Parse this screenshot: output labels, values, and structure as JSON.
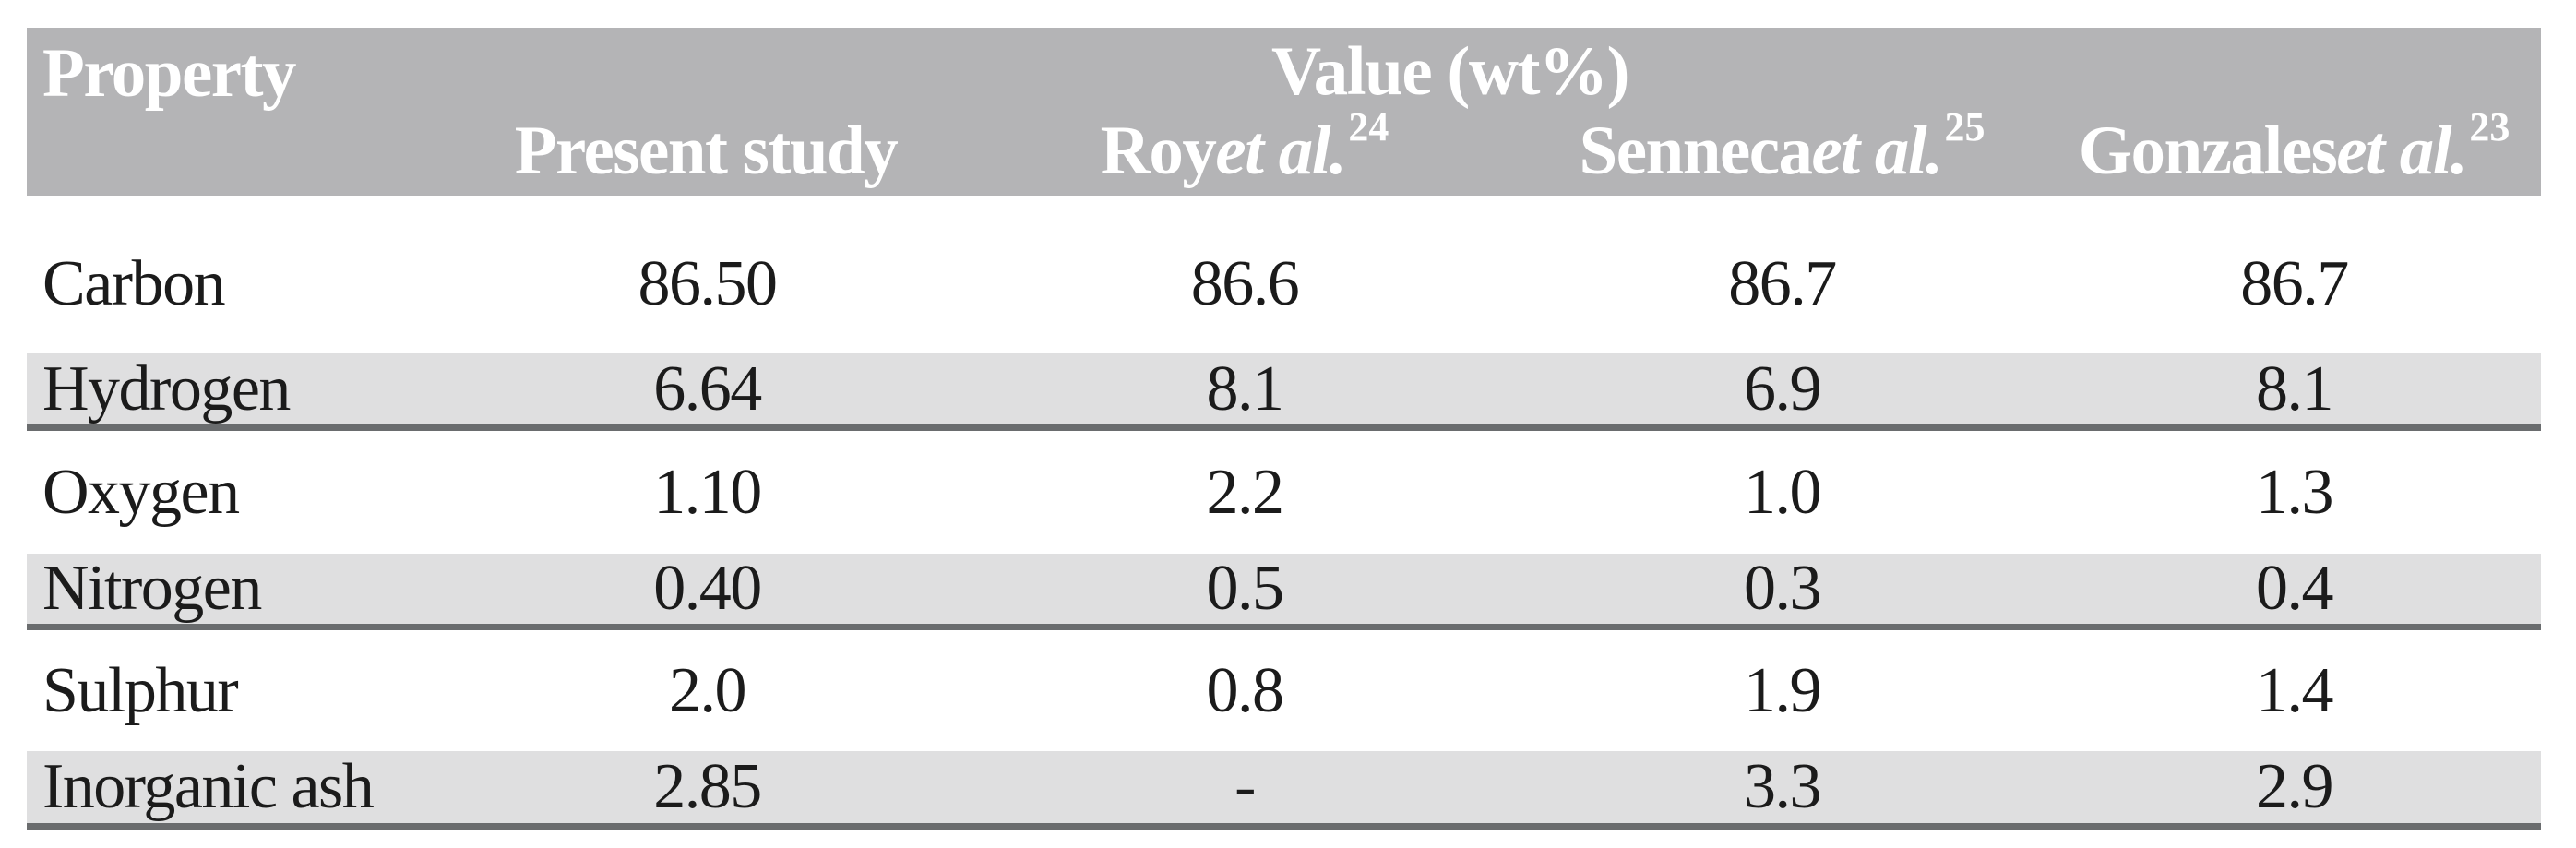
{
  "colors": {
    "header_bg": "#b4b4b6",
    "header_text": "#ffffff",
    "row_shade": "#dfdfe0",
    "rule": "#6a6c6e",
    "body_text": "#1b1b1b"
  },
  "table": {
    "property_header": "Property",
    "value_group_header": "Value (wt%)",
    "columns": [
      {
        "name": "Present study",
        "etal": "",
        "ref": ""
      },
      {
        "name": "Roy ",
        "etal": "et al.",
        "ref": "24"
      },
      {
        "name": "Senneca ",
        "etal": "et al.",
        "ref": "25"
      },
      {
        "name": "Gonzales ",
        "etal": "et al.",
        "ref": "23"
      }
    ],
    "rows": [
      {
        "property": "Carbon",
        "values": [
          "86.50",
          "86.6",
          "86.7",
          "86.7"
        ]
      },
      {
        "property": "Hydrogen",
        "values": [
          "6.64",
          "8.1",
          "6.9",
          "8.1"
        ]
      },
      {
        "property": "Oxygen",
        "values": [
          "1.10",
          "2.2",
          "1.0",
          "1.3"
        ]
      },
      {
        "property": "Nitrogen",
        "values": [
          "0.40",
          "0.5",
          "0.3",
          "0.4"
        ]
      },
      {
        "property": "Sulphur",
        "values": [
          "2.0",
          "0.8",
          "1.9",
          "1.4"
        ]
      },
      {
        "property": "Inorganic ash",
        "values": [
          "2.85",
          "-",
          "3.3",
          "2.9"
        ]
      }
    ]
  }
}
